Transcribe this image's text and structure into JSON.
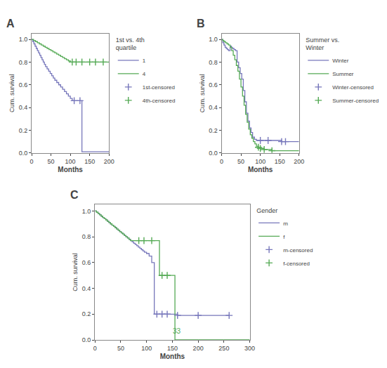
{
  "chart_data": [
    {
      "type": "step",
      "title": "A",
      "legend_title": "1st vs. 4th\nquartile",
      "legend": "right",
      "grid": false,
      "xlabel": "Months",
      "ylabel": "Cum. survival",
      "xlim": [
        0,
        200
      ],
      "ylim": [
        0.0,
        1.05
      ],
      "xticks": [
        0,
        50,
        100,
        150,
        200
      ],
      "yticks": [
        {
          "value": 0.0,
          "label": "0.0"
        },
        0.2,
        0.4,
        0.6,
        0.8,
        {
          "value": 1.0,
          "label": "1.0"
        }
      ],
      "series": [
        {
          "name": "1",
          "color": "#7777bb",
          "x": [
            0,
            3,
            6,
            9,
            12,
            15,
            18,
            21,
            24,
            27,
            30,
            33,
            36,
            40,
            44,
            48,
            52,
            56,
            60,
            65,
            70,
            75,
            80,
            85,
            90,
            95,
            100,
            105,
            110,
            125,
            130,
            200
          ],
          "values": [
            1.0,
            0.98,
            0.96,
            0.94,
            0.92,
            0.9,
            0.88,
            0.86,
            0.84,
            0.82,
            0.8,
            0.78,
            0.76,
            0.74,
            0.72,
            0.7,
            0.68,
            0.66,
            0.64,
            0.62,
            0.6,
            0.58,
            0.56,
            0.54,
            0.52,
            0.5,
            0.48,
            0.46,
            0.46,
            0.46,
            0.01,
            0.01
          ]
        },
        {
          "name": "4",
          "color": "#55aa55",
          "x": [
            0,
            5,
            10,
            15,
            20,
            25,
            30,
            35,
            40,
            45,
            50,
            55,
            60,
            65,
            70,
            75,
            80,
            85,
            90,
            95,
            100,
            105,
            115,
            130,
            150,
            165,
            185,
            200
          ],
          "values": [
            1.0,
            0.99,
            0.98,
            0.97,
            0.96,
            0.95,
            0.94,
            0.93,
            0.92,
            0.91,
            0.9,
            0.89,
            0.88,
            0.87,
            0.86,
            0.85,
            0.84,
            0.83,
            0.82,
            0.81,
            0.8,
            0.8,
            0.8,
            0.8,
            0.8,
            0.8,
            0.8,
            0.8
          ]
        },
        {
          "name": "1st-censored",
          "type": "scatter",
          "marker": "plus",
          "color": "#7777bb",
          "x": [
            110,
            125
          ],
          "values": [
            0.46,
            0.46
          ]
        },
        {
          "name": "4th-censored",
          "type": "scatter",
          "marker": "plus",
          "color": "#55aa55",
          "x": [
            105,
            115,
            130,
            150,
            165,
            185
          ],
          "values": [
            0.8,
            0.8,
            0.8,
            0.8,
            0.8,
            0.8
          ]
        }
      ]
    },
    {
      "type": "step",
      "title": "B",
      "legend_title": "Summer vs.\nWinter",
      "legend": "right",
      "grid": false,
      "xlabel": "Months",
      "ylabel": "Cum. survival",
      "xlim": [
        0,
        200
      ],
      "ylim": [
        0.0,
        1.05
      ],
      "xticks": [
        0,
        50,
        100,
        150,
        200
      ],
      "yticks": [
        {
          "value": 0.0,
          "label": "0.0"
        },
        0.2,
        0.4,
        0.6,
        0.8,
        {
          "value": 1.0,
          "label": "1.0"
        }
      ],
      "series": [
        {
          "name": "Winter",
          "color": "#7777bb",
          "x": [
            0,
            3,
            6,
            9,
            12,
            15,
            18,
            22,
            25,
            28,
            32,
            36,
            40,
            44,
            48,
            52,
            56,
            60,
            64,
            68,
            72,
            76,
            80,
            85,
            90,
            100,
            120,
            150,
            155,
            165,
            200
          ],
          "values": [
            1.0,
            0.97,
            0.95,
            0.93,
            0.92,
            0.91,
            0.9,
            0.94,
            0.93,
            0.92,
            0.91,
            0.9,
            0.8,
            0.75,
            0.7,
            0.65,
            0.55,
            0.45,
            0.35,
            0.28,
            0.22,
            0.18,
            0.14,
            0.12,
            0.11,
            0.11,
            0.11,
            0.11,
            0.1,
            0.1,
            0.1
          ]
        },
        {
          "name": "Summer",
          "color": "#55aa55",
          "x": [
            0,
            3,
            6,
            10,
            14,
            18,
            22,
            26,
            30,
            34,
            38,
            42,
            46,
            50,
            54,
            58,
            62,
            66,
            70,
            74,
            78,
            82,
            86,
            90,
            95,
            100,
            110,
            130,
            200
          ],
          "values": [
            1.0,
            0.99,
            0.98,
            0.97,
            0.96,
            0.95,
            0.93,
            0.9,
            0.86,
            0.82,
            0.77,
            0.72,
            0.65,
            0.58,
            0.5,
            0.42,
            0.34,
            0.27,
            0.21,
            0.16,
            0.13,
            0.1,
            0.08,
            0.06,
            0.05,
            0.04,
            0.03,
            0.02,
            0.02
          ]
        },
        {
          "name": "Winter-censored",
          "type": "scatter",
          "marker": "plus",
          "color": "#7777bb",
          "x": [
            100,
            120,
            155,
            165
          ],
          "values": [
            0.11,
            0.11,
            0.1,
            0.1
          ]
        },
        {
          "name": "Summer-censored",
          "type": "scatter",
          "marker": "plus",
          "color": "#55aa55",
          "x": [
            95,
            100,
            110,
            130
          ],
          "values": [
            0.05,
            0.04,
            0.03,
            0.02
          ]
        }
      ]
    },
    {
      "type": "step",
      "title": "C",
      "legend_title": "Gender",
      "legend": "right",
      "grid": false,
      "xlabel": "Months",
      "ylabel": "Cum. survival",
      "xlim": [
        0,
        300
      ],
      "ylim": [
        0.0,
        1.05
      ],
      "xticks": [
        0,
        50,
        100,
        150,
        200,
        250,
        300
      ],
      "yticks": [
        {
          "value": 0.0,
          "label": "0.0"
        },
        0.2,
        0.4,
        0.6,
        0.8,
        {
          "value": 1.0,
          "label": "1.0"
        }
      ],
      "annotations": [
        {
          "text": "33",
          "x": 148,
          "y": 0.025,
          "color": "#55aa55"
        }
      ],
      "series": [
        {
          "name": "m",
          "color": "#7777bb",
          "x": [
            0,
            3,
            6,
            9,
            12,
            15,
            18,
            21,
            24,
            27,
            30,
            33,
            36,
            39,
            42,
            45,
            48,
            51,
            54,
            57,
            60,
            63,
            66,
            69,
            72,
            75,
            78,
            81,
            84,
            87,
            90,
            93,
            96,
            100,
            105,
            110,
            115,
            120,
            130,
            140,
            150,
            160,
            200,
            260
          ],
          "values": [
            1.0,
            0.99,
            0.98,
            0.97,
            0.96,
            0.95,
            0.94,
            0.93,
            0.92,
            0.91,
            0.9,
            0.89,
            0.88,
            0.87,
            0.86,
            0.85,
            0.84,
            0.83,
            0.82,
            0.81,
            0.8,
            0.79,
            0.78,
            0.77,
            0.76,
            0.75,
            0.74,
            0.73,
            0.72,
            0.71,
            0.7,
            0.69,
            0.68,
            0.67,
            0.65,
            0.6,
            0.2,
            0.2,
            0.2,
            0.2,
            0.2,
            0.19,
            0.19,
            0.19
          ]
        },
        {
          "name": "f",
          "color": "#55aa55",
          "x": [
            0,
            3,
            6,
            9,
            12,
            15,
            18,
            21,
            24,
            27,
            30,
            33,
            36,
            39,
            42,
            45,
            48,
            51,
            54,
            57,
            60,
            63,
            66,
            69,
            72,
            75,
            80,
            85,
            90,
            95,
            100,
            110,
            120,
            125,
            130,
            140,
            150,
            155,
            300
          ],
          "values": [
            1.0,
            0.99,
            0.98,
            0.97,
            0.96,
            0.95,
            0.94,
            0.93,
            0.92,
            0.91,
            0.9,
            0.89,
            0.88,
            0.87,
            0.86,
            0.85,
            0.84,
            0.83,
            0.82,
            0.81,
            0.8,
            0.79,
            0.78,
            0.77,
            0.77,
            0.77,
            0.77,
            0.77,
            0.77,
            0.77,
            0.77,
            0.77,
            0.77,
            0.5,
            0.5,
            0.5,
            0.5,
            0.0,
            0.0
          ]
        },
        {
          "name": "m-censored",
          "type": "scatter",
          "marker": "plus",
          "color": "#7777bb",
          "x": [
            120,
            130,
            140,
            160,
            200,
            260
          ],
          "values": [
            0.2,
            0.2,
            0.2,
            0.19,
            0.19,
            0.19
          ]
        },
        {
          "name": "f-censored",
          "type": "scatter",
          "marker": "plus",
          "color": "#55aa55",
          "x": [
            85,
            95,
            110,
            130,
            140
          ],
          "values": [
            0.77,
            0.77,
            0.77,
            0.5,
            0.5
          ]
        }
      ]
    }
  ]
}
